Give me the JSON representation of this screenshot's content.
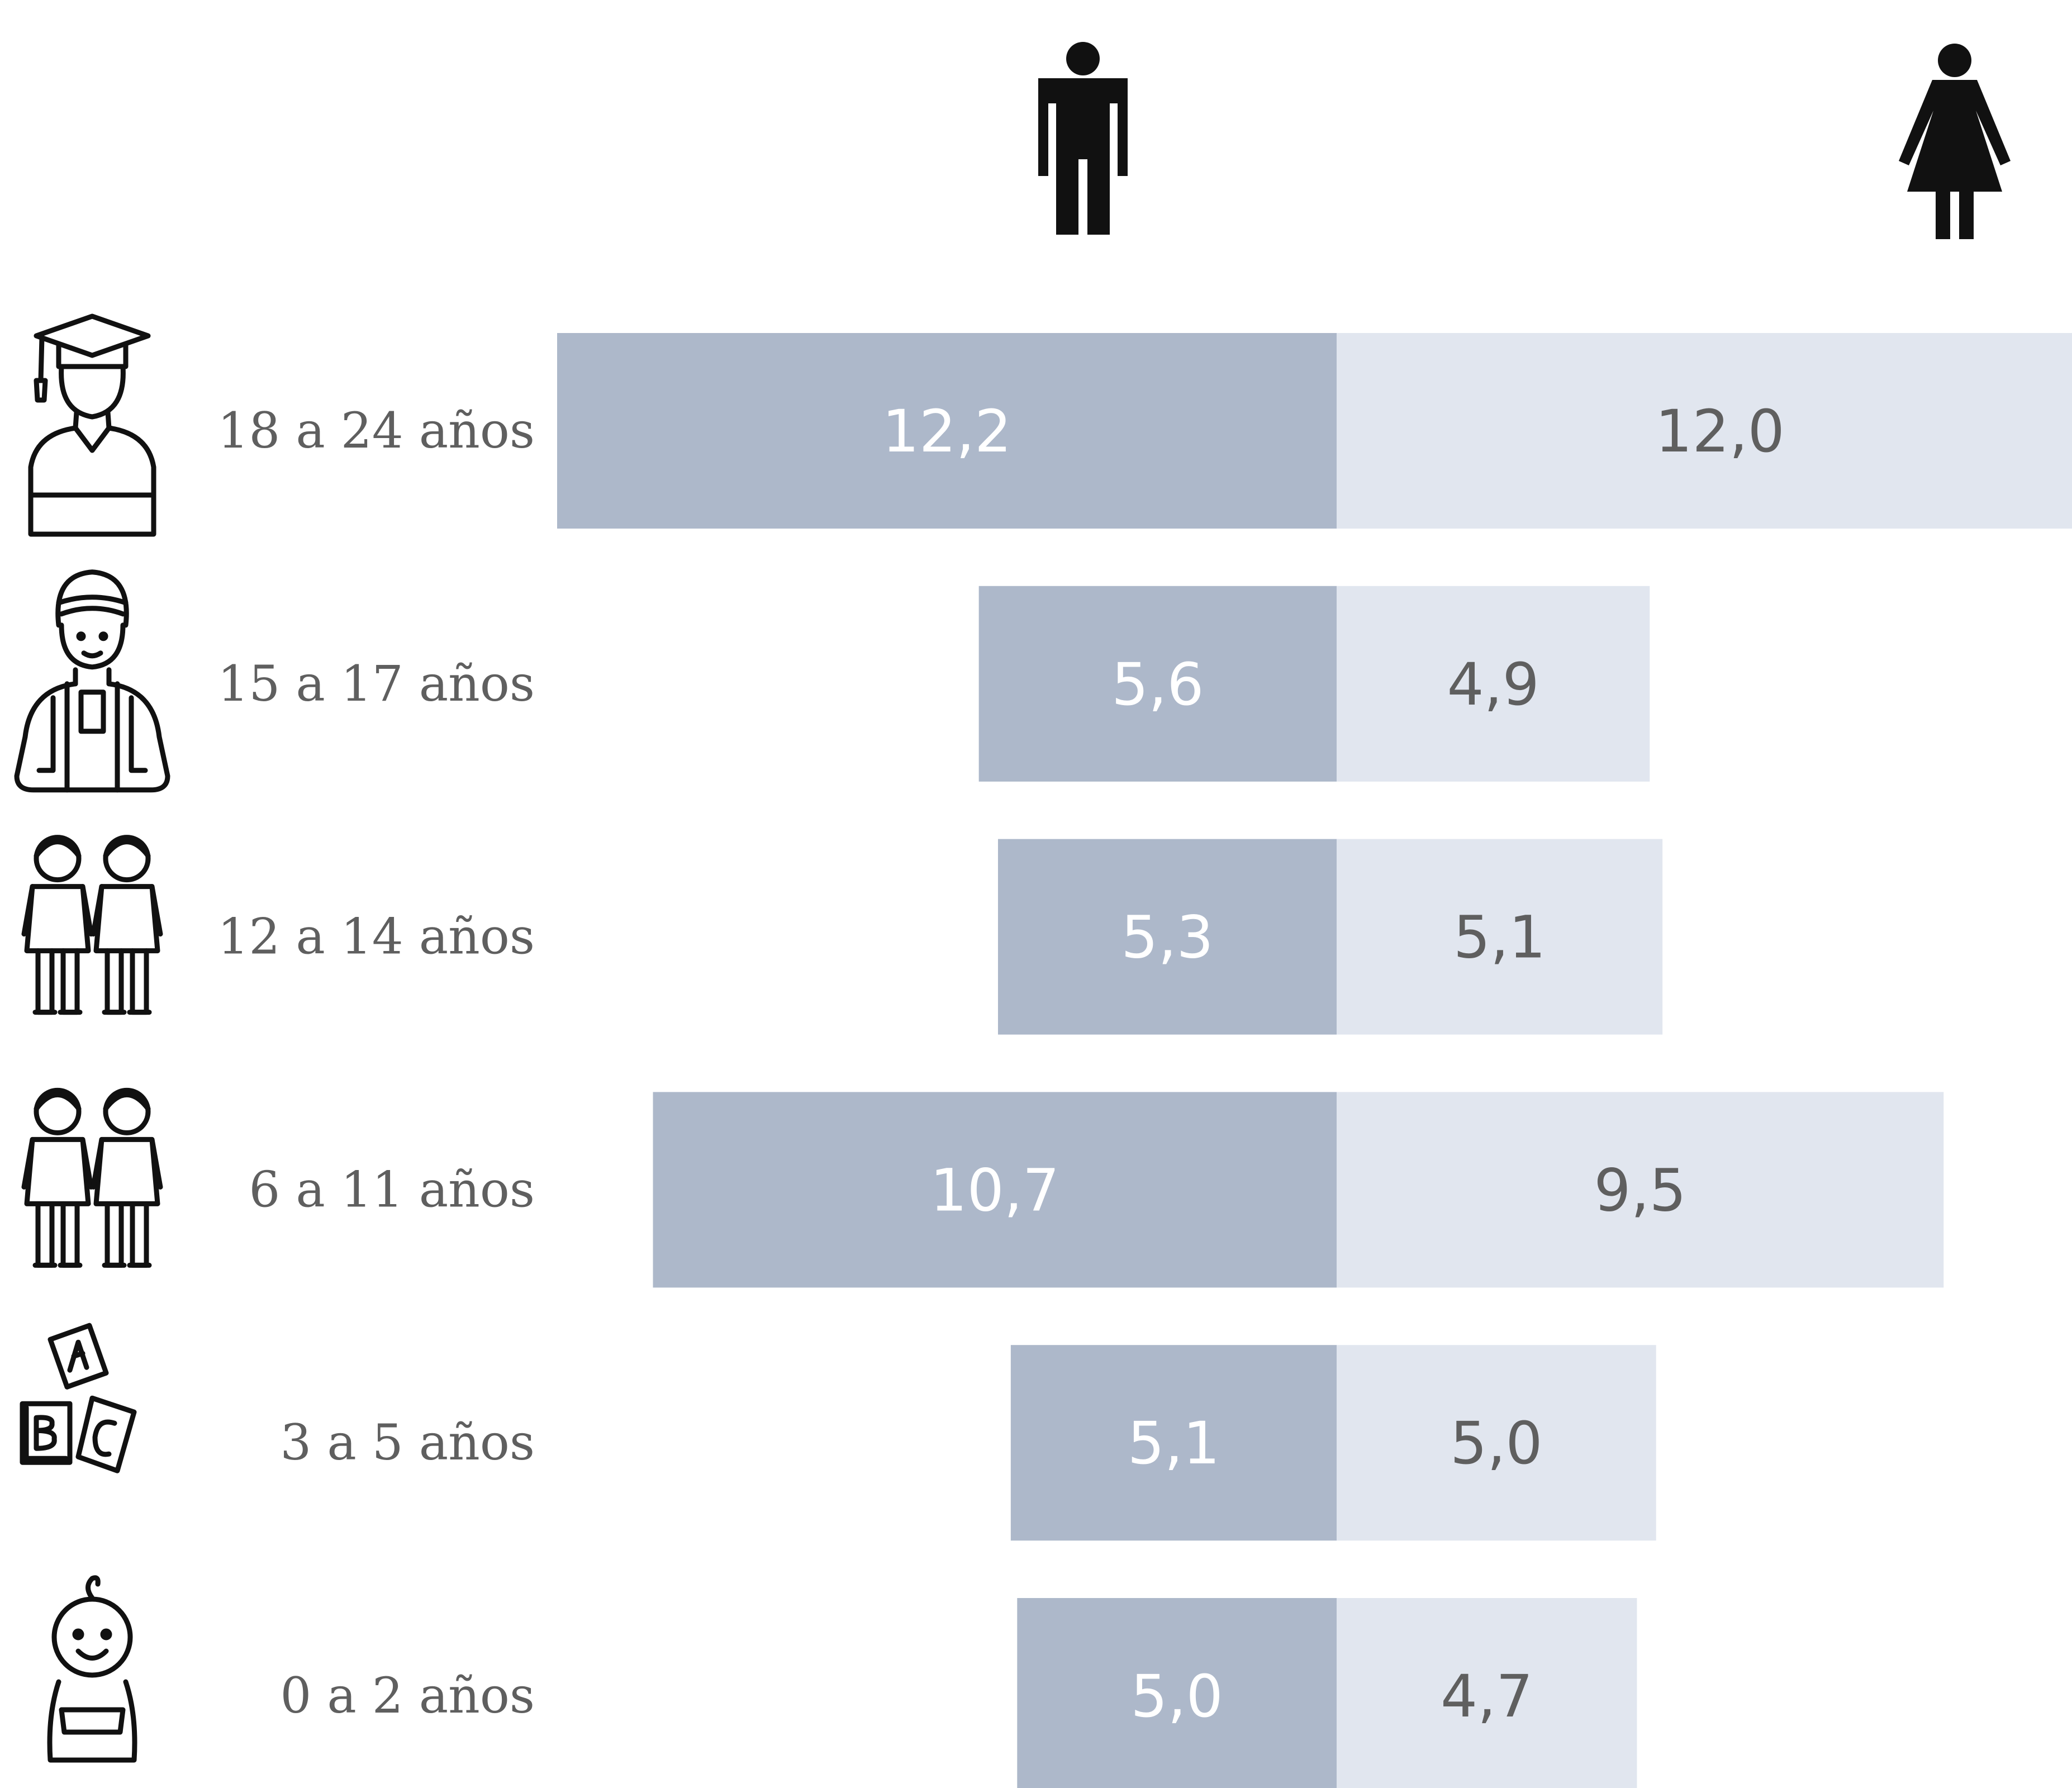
{
  "chart_data": {
    "type": "bar",
    "orientation": "horizontal",
    "layout": "back-to-back",
    "title": "",
    "xlabel": "",
    "ylabel": "",
    "xlim": [
      0,
      12.2
    ],
    "grid": false,
    "legend": "icons-top",
    "categories": [
      "18 a 24 años",
      "15 a 17 años",
      "12 a 14 años",
      "6 a 11 años",
      "3 a 5 años",
      "0 a 2 años"
    ],
    "series": [
      {
        "icon": "male-icon",
        "color": "#adb8ca",
        "values": [
          12.2,
          5.6,
          5.3,
          10.7,
          5.1,
          5.0
        ],
        "labels": [
          "12,2",
          "5,6",
          "5,3",
          "10,7",
          "5,1",
          "5,0"
        ]
      },
      {
        "icon": "female-icon",
        "color": "#e1e6ef",
        "values": [
          12.0,
          4.9,
          5.1,
          9.5,
          5.0,
          4.7
        ],
        "labels": [
          "12,0",
          "4,9",
          "5,1",
          "9,5",
          "5,0",
          "4,7"
        ]
      }
    ],
    "row_icons": [
      "graduate-icon",
      "teen-icon",
      "children-icon",
      "children-icon",
      "abc-blocks-icon",
      "baby-icon"
    ]
  }
}
